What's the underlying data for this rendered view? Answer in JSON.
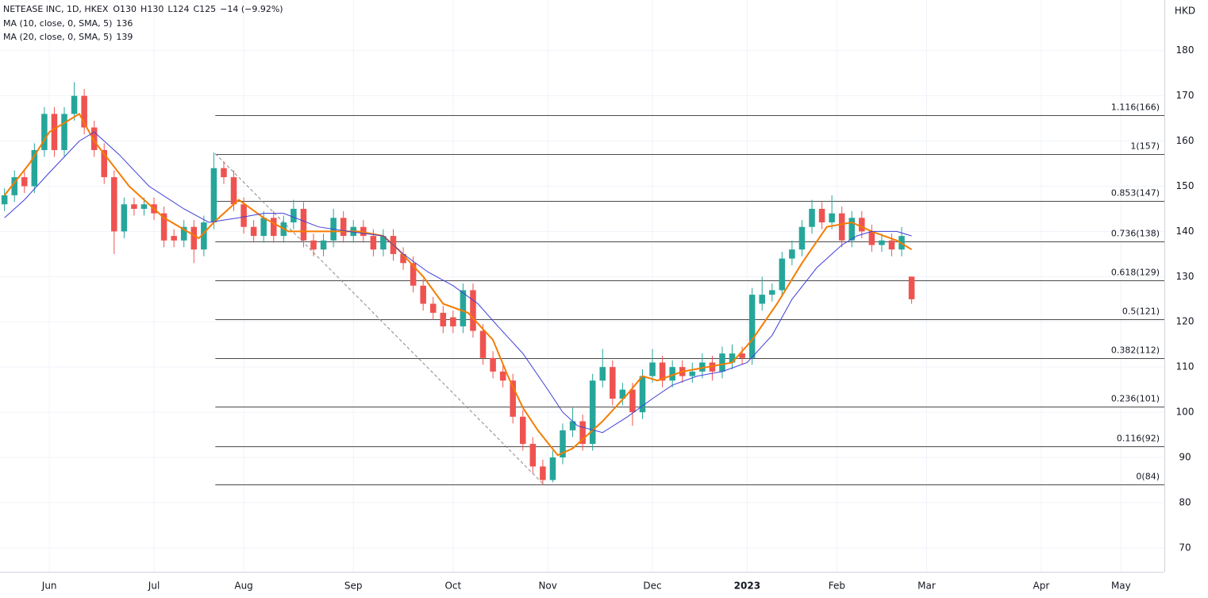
{
  "chart_data": {
    "type": "candlestick",
    "header": {
      "symbol": "NETEASE INC, 1D, HKEX",
      "ohlc": [
        "O130",
        "H130",
        "L124",
        "C125"
      ],
      "change": "−14 (−9.92%)"
    },
    "unit": "HKD",
    "up_color": "#26a69a",
    "down_color": "#ef5350",
    "x": [
      -9,
      -7,
      -5,
      -3,
      -1,
      1,
      3,
      5,
      7,
      9,
      11,
      13,
      15,
      17,
      19,
      21,
      23,
      25,
      27,
      29,
      31,
      33,
      35,
      37,
      39,
      41,
      43,
      45,
      47,
      49,
      51,
      53,
      55,
      57,
      59,
      61,
      63,
      65,
      67,
      69,
      71,
      73,
      75,
      77,
      79,
      81,
      83,
      85,
      87,
      89,
      91,
      93,
      95,
      97,
      99,
      101,
      103,
      105,
      107,
      109,
      111,
      113,
      115,
      117,
      119,
      121,
      123,
      125,
      127,
      129,
      131,
      133,
      135,
      137,
      139,
      141,
      143,
      145,
      147,
      149,
      151,
      153,
      155,
      157,
      159,
      161,
      163,
      165,
      167,
      169,
      171,
      173
    ],
    "open": [
      146,
      148,
      152,
      150,
      158,
      166,
      158,
      166,
      170,
      163,
      158,
      152,
      140,
      146,
      145,
      146,
      144,
      139,
      138,
      141,
      136,
      142,
      154,
      152,
      146,
      141,
      139,
      143,
      139,
      142,
      145,
      138,
      136,
      138,
      143,
      139,
      141,
      139,
      136,
      139,
      135,
      133,
      128,
      124,
      122,
      121,
      119,
      127,
      118,
      112,
      109,
      107,
      99,
      93,
      88,
      85,
      90,
      96,
      98,
      93,
      107,
      110,
      103,
      105,
      100,
      108,
      111,
      107,
      110,
      108,
      109,
      111,
      109,
      111,
      113,
      112,
      124,
      126,
      127,
      134,
      136,
      141,
      145,
      142,
      144,
      138,
      143,
      140,
      137,
      138,
      136,
      130
    ],
    "high": [
      149.5,
      153.5,
      153.5,
      159.5,
      167.5,
      167.5,
      167.5,
      173,
      171.5,
      164.5,
      159.5,
      153.5,
      147.5,
      147.5,
      147.5,
      147.5,
      145.5,
      140.5,
      142.5,
      142.5,
      143.5,
      157.5,
      155.5,
      153.5,
      147.5,
      142.5,
      144.5,
      144.5,
      143.5,
      147,
      146.5,
      139.5,
      139.5,
      145,
      144.5,
      142.5,
      142.5,
      140.5,
      140.5,
      140.5,
      136.5,
      134.5,
      129.5,
      125.5,
      123.5,
      122.5,
      128.5,
      128.5,
      119.5,
      113.5,
      110.5,
      108.5,
      100.5,
      94.5,
      89.5,
      91.5,
      97.5,
      101,
      99.5,
      108.5,
      114,
      111.5,
      106.5,
      106.5,
      109.5,
      114,
      112.5,
      111.5,
      111.5,
      111,
      113,
      112.5,
      114.5,
      115,
      114.5,
      127.5,
      130,
      128.5,
      135.5,
      138,
      142.5,
      147,
      146.5,
      148,
      145.5,
      144.5,
      144.5,
      141.5,
      139.5,
      139.5,
      141,
      130
    ],
    "low": [
      144.5,
      146.5,
      148.5,
      148.5,
      156.5,
      156.5,
      156.5,
      164.5,
      161.5,
      156.5,
      150.5,
      135,
      138.5,
      143.5,
      143.5,
      142.5,
      136.5,
      136.5,
      136.5,
      133,
      134.5,
      140.5,
      150.5,
      144.5,
      139.5,
      137.5,
      137.5,
      137.5,
      137.5,
      140.5,
      136.5,
      134.5,
      134.5,
      136.5,
      137.5,
      137.5,
      137.5,
      134.5,
      134.5,
      133.5,
      131.5,
      126.5,
      122.5,
      120.5,
      117.5,
      117.5,
      117.5,
      116.5,
      110.5,
      107.5,
      105.5,
      97.5,
      91.5,
      86.5,
      84,
      84.5,
      88.5,
      94.5,
      91.5,
      91.5,
      105.5,
      101.5,
      101.5,
      97,
      98.5,
      106.5,
      105.5,
      105.5,
      106.5,
      106.5,
      107.5,
      107,
      107.5,
      109.5,
      110.5,
      110.5,
      122.5,
      124.5,
      125.5,
      132.5,
      134.5,
      139.5,
      140.5,
      140.5,
      136.5,
      136.5,
      138.5,
      135.5,
      135.5,
      134.5,
      134.5,
      124
    ],
    "close": [
      148,
      152,
      150,
      158,
      166,
      158,
      166,
      170,
      163,
      158,
      152,
      140,
      146,
      145,
      146,
      144,
      138,
      138,
      141,
      136,
      142,
      154,
      152,
      146,
      141,
      139,
      143,
      139,
      142,
      145,
      138,
      136,
      138,
      143,
      139,
      141,
      139,
      136,
      139,
      135,
      133,
      128,
      124,
      122,
      119,
      119,
      127,
      118,
      112,
      109,
      107,
      99,
      93,
      88,
      85,
      90,
      96,
      98,
      93,
      107,
      110,
      103,
      105,
      100,
      108,
      111,
      107,
      110,
      108,
      109,
      111,
      109,
      113,
      113,
      112,
      126,
      126,
      127,
      134,
      136,
      141,
      145,
      142,
      144,
      138,
      143,
      140,
      137,
      138,
      136,
      139,
      125
    ],
    "lines": [
      {
        "name": "MA (10, close, 0, SMA, 5)",
        "last_label": "136",
        "color": "#f57c00",
        "width": 2,
        "x": [
          -9,
          -4,
          0,
          6,
          9,
          16,
          20,
          23,
          30,
          33,
          38,
          43,
          48,
          52,
          57,
          62,
          67,
          70,
          75,
          79,
          84,
          89,
          92,
          95,
          98,
          102,
          105,
          108,
          111,
          116,
          119,
          122,
          127,
          132,
          137,
          141,
          146,
          151,
          156,
          161,
          165,
          170,
          173
        ],
        "values": [
          148,
          155,
          162,
          166,
          160,
          150,
          146,
          143,
          138.5,
          142,
          147,
          143,
          140,
          140,
          140,
          140,
          139,
          136,
          130,
          124,
          122,
          116,
          108,
          101,
          96,
          90.5,
          92,
          95,
          98,
          104,
          108,
          107,
          109,
          110,
          111,
          116,
          124,
          133,
          141,
          142,
          140,
          138,
          136
        ]
      },
      {
        "name": "MA (20, close, 0, SMA, 5)",
        "last_label": "139",
        "color": "#3f3fd8",
        "width": 1,
        "x": [
          -9,
          -5,
          0,
          6,
          9,
          14,
          20,
          27,
          32,
          38,
          43,
          47,
          54,
          60,
          67,
          71,
          76,
          81,
          86,
          90,
          95,
          100,
          103,
          106,
          111,
          116,
          121,
          125,
          130,
          135,
          140,
          145,
          149,
          154,
          159,
          162,
          165,
          170,
          173
        ],
        "values": [
          143,
          147,
          153,
          160,
          162,
          157,
          150,
          145,
          142,
          143,
          144,
          144,
          141,
          140,
          139,
          135,
          131,
          128,
          124,
          119,
          113,
          105,
          100,
          97,
          95.5,
          99,
          103,
          106,
          108,
          109,
          111,
          117,
          125,
          132,
          137,
          139,
          140,
          140,
          139
        ]
      }
    ],
    "fib": {
      "x_start": 33.3,
      "levels": [
        {
          "value": 165.8,
          "label": "1.116(166)"
        },
        {
          "value": 157.2,
          "label": "1(157)"
        },
        {
          "value": 146.7,
          "label": "0.853(147)"
        },
        {
          "value": 137.8,
          "label": "0.736(138)"
        },
        {
          "value": 129.1,
          "label": "0.618(129)"
        },
        {
          "value": 120.6,
          "label": "0.5(121)"
        },
        {
          "value": 111.9,
          "label": "0.382(112)"
        },
        {
          "value": 101.3,
          "label": "0.236(101)"
        },
        {
          "value": 92.4,
          "label": "0.116(92)"
        },
        {
          "value": 84.0,
          "label": "0(84)"
        }
      ]
    },
    "trend_line": {
      "x": [
        33.3,
        99.2
      ],
      "y": [
        157.2,
        84.0
      ]
    },
    "xlim": [
      -9.9,
      223.7
    ],
    "xticks": [
      {
        "value": 0,
        "label": "Jun"
      },
      {
        "value": 21,
        "label": "Jul"
      },
      {
        "value": 39,
        "label": "Aug"
      },
      {
        "value": 61,
        "label": "Sep"
      },
      {
        "value": 81,
        "label": "Oct"
      },
      {
        "value": 100,
        "label": "Nov"
      },
      {
        "value": 121,
        "label": "Dec"
      },
      {
        "value": 140,
        "label": "2023"
      },
      {
        "value": 158,
        "label": "Feb"
      },
      {
        "value": 176,
        "label": "Mar"
      },
      {
        "value": 199,
        "label": "Apr"
      },
      {
        "value": 215,
        "label": "May"
      }
    ],
    "ylim": [
      64.7,
      191.2
    ],
    "yticks": [
      70,
      80,
      90,
      100,
      110,
      120,
      130,
      140,
      150,
      160,
      170,
      180
    ],
    "grid": true
  }
}
